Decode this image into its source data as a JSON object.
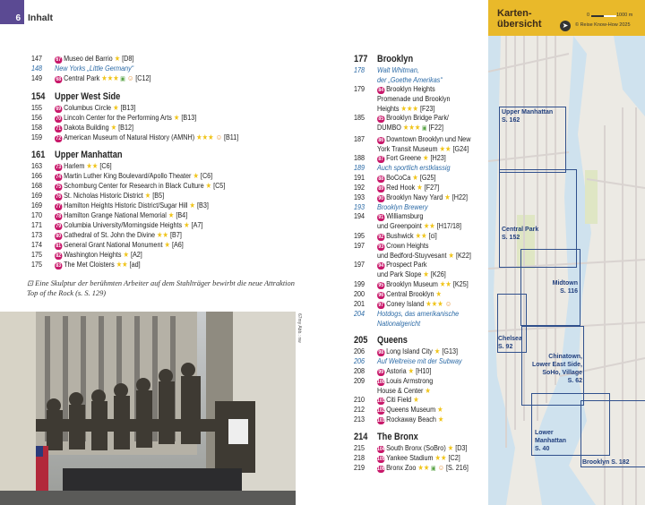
{
  "header": {
    "page_number": "6",
    "running_title": "Inhalt"
  },
  "left_sections": [
    {
      "heading": null,
      "entries": [
        {
          "page": "147",
          "badge": "67",
          "name": "Museo del Barrio",
          "stars": 1,
          "icons": [],
          "ref": "[D8]"
        },
        {
          "page": "148",
          "italic": true,
          "name": "New Yorks „Little Germany“"
        },
        {
          "page": "149",
          "badge": "68",
          "name": "Central Park",
          "stars": 3,
          "icons": [
            "map-icon",
            "kid-icon"
          ],
          "ref": "[C12]"
        }
      ]
    },
    {
      "heading": {
        "page": "154",
        "title": "Upper West Side"
      },
      "entries": [
        {
          "page": "155",
          "badge": "69",
          "name": "Columbus Circle",
          "stars": 1,
          "icons": [],
          "ref": "[B13]"
        },
        {
          "page": "156",
          "badge": "70",
          "name": "Lincoln Center for the Performing Arts",
          "stars": 1,
          "icons": [],
          "ref": "[B13]"
        },
        {
          "page": "158",
          "badge": "71",
          "name": "Dakota Building",
          "stars": 1,
          "icons": [],
          "ref": "[B12]"
        },
        {
          "page": "159",
          "badge": "72",
          "name": "American Museum of Natural History (AMNH)",
          "stars": 3,
          "icons": [
            "kid-icon"
          ],
          "ref": "[B11]"
        }
      ]
    },
    {
      "heading": {
        "page": "161",
        "title": "Upper Manhattan"
      },
      "entries": [
        {
          "page": "163",
          "badge": "73",
          "name": "Harlem",
          "stars": 2,
          "icons": [],
          "ref": "[C6]"
        },
        {
          "page": "166",
          "badge": "74",
          "name": "Martin Luther King Boulevard/Apollo Theater",
          "stars": 1,
          "icons": [],
          "ref": "[C6]"
        },
        {
          "page": "168",
          "badge": "75",
          "name": "Schomburg Center for Research in Black Culture",
          "stars": 1,
          "icons": [],
          "ref": "[C5]"
        },
        {
          "page": "169",
          "badge": "76",
          "name": "St. Nicholas Historic District",
          "stars": 1,
          "icons": [],
          "ref": "[B5]"
        },
        {
          "page": "169",
          "badge": "77",
          "name": "Hamilton Heights Historic District/Sugar Hill",
          "stars": 1,
          "icons": [],
          "ref": "[B3]"
        },
        {
          "page": "170",
          "badge": "78",
          "name": "Hamilton Grange National Memorial",
          "stars": 1,
          "icons": [],
          "ref": "[B4]"
        },
        {
          "page": "171",
          "badge": "79",
          "name": "Columbia University/Morningside Heights",
          "stars": 1,
          "icons": [],
          "ref": "[A7]"
        },
        {
          "page": "173",
          "badge": "80",
          "name": "Cathedral of St. John the Divine",
          "stars": 2,
          "icons": [],
          "ref": "[B7]"
        },
        {
          "page": "174",
          "badge": "81",
          "name": "General Grant National Monument",
          "stars": 1,
          "icons": [],
          "ref": "[A6]"
        },
        {
          "page": "175",
          "badge": "82",
          "name": "Washington Heights",
          "stars": 1,
          "icons": [],
          "ref": "[A2]"
        },
        {
          "page": "175",
          "badge": "83",
          "name": "The Met Cloisters",
          "stars": 2,
          "icons": [],
          "ref": "[ad]"
        }
      ]
    }
  ],
  "right_sections": [
    {
      "heading": {
        "page": "177",
        "title": "Brooklyn"
      },
      "entries": [
        {
          "page": "178",
          "italic": true,
          "name": "Walt Whitman,\nder „Goethe Amerikas“"
        },
        {
          "page": "179",
          "badge": "84",
          "name": "Brooklyn Heights\nPromenade und Brooklyn\nHeights",
          "stars": 3,
          "icons": [],
          "ref": "[F23]"
        },
        {
          "page": "185",
          "badge": "85",
          "name": "Brooklyn Bridge Park/\nDUMBO",
          "stars": 3,
          "icons": [
            "map-icon"
          ],
          "ref": "[F22]"
        },
        {
          "page": "187",
          "badge": "86",
          "name": "Downtown Brooklyn und New\nYork Transit Museum",
          "stars": 2,
          "icons": [],
          "ref": "[G24]"
        },
        {
          "page": "188",
          "badge": "87",
          "name": "Fort Greene",
          "stars": 1,
          "icons": [],
          "ref": "[H23]"
        },
        {
          "page": "189",
          "italic": true,
          "name": "Auch sportlich erstklassig"
        },
        {
          "page": "191",
          "badge": "88",
          "name": "BoCoCa",
          "stars": 1,
          "icons": [],
          "ref": "[G25]"
        },
        {
          "page": "192",
          "badge": "89",
          "name": "Red Hook",
          "stars": 1,
          "icons": [],
          "ref": "[F27]"
        },
        {
          "page": "193",
          "badge": "90",
          "name": "Brooklyn Navy Yard",
          "stars": 1,
          "icons": [],
          "ref": "[H22]"
        },
        {
          "page": "193",
          "italic": true,
          "name": "Brooklyn Brewery"
        },
        {
          "page": "194",
          "badge": "91",
          "name": "Williamsburg\nund Greenpoint",
          "stars": 2,
          "icons": [],
          "ref": "[H17/18]"
        },
        {
          "page": "195",
          "badge": "92",
          "name": "Bushwick",
          "stars": 2,
          "icons": [],
          "ref": "[ci]"
        },
        {
          "page": "197",
          "badge": "93",
          "name": "Crown Heights\nund Bedford-Stuyvesant",
          "stars": 1,
          "icons": [],
          "ref": "[K22]"
        },
        {
          "page": "197",
          "badge": "94",
          "name": "Prospect Park\nund Park Slope",
          "stars": 1,
          "icons": [],
          "ref": "[K26]"
        },
        {
          "page": "199",
          "badge": "95",
          "name": "Brooklyn Museum",
          "stars": 2,
          "icons": [],
          "ref": "[K25]"
        },
        {
          "page": "200",
          "badge": "96",
          "name": "Central Brooklyn",
          "stars": 1,
          "icons": [],
          "ref": ""
        },
        {
          "page": "201",
          "badge": "97",
          "name": "Coney Island",
          "stars": 3,
          "icons": [
            "kid-icon"
          ],
          "ref": ""
        },
        {
          "page": "204",
          "italic": true,
          "name": "Hotdogs, das amerikanische\nNationalgericht"
        }
      ]
    },
    {
      "heading": {
        "page": "205",
        "title": "Queens"
      },
      "entries": [
        {
          "page": "206",
          "badge": "98",
          "name": "Long Island City",
          "stars": 1,
          "icons": [],
          "ref": "[G13]"
        },
        {
          "page": "206",
          "italic": true,
          "name": "Auf Weltreise mit der Subway"
        },
        {
          "page": "208",
          "badge": "99",
          "name": "Astoria",
          "stars": 1,
          "icons": [],
          "ref": "[H10]"
        },
        {
          "page": "209",
          "badge": "100",
          "name": "Louis Armstrong\nHouse & Center",
          "stars": 1,
          "icons": [],
          "ref": ""
        },
        {
          "page": "210",
          "badge": "101",
          "name": "Citi Field",
          "stars": 1,
          "icons": [],
          "ref": ""
        },
        {
          "page": "212",
          "badge": "102",
          "name": "Queens Museum",
          "stars": 1,
          "icons": [],
          "ref": ""
        },
        {
          "page": "213",
          "badge": "103",
          "name": "Rockaway Beach",
          "stars": 1,
          "icons": [],
          "ref": ""
        }
      ]
    },
    {
      "heading": {
        "page": "214",
        "title": "The Bronx"
      },
      "entries": [
        {
          "page": "215",
          "badge": "104",
          "name": "South Bronx (SoBro)",
          "stars": 1,
          "icons": [],
          "ref": "[D3]"
        },
        {
          "page": "218",
          "badge": "105",
          "name": "Yankee Stadium",
          "stars": 2,
          "icons": [],
          "ref": "[C2]"
        },
        {
          "page": "219",
          "badge": "106",
          "name": "Bronx Zoo",
          "stars": 2,
          "icons": [
            "map-icon",
            "kid-icon"
          ],
          "ref": "[S. 216]"
        }
      ]
    }
  ],
  "caption": "Eine Skulptur der berühmten Arbeiter auf dem Stahlträger bewirbt die neue Attraktion Top of the Rock (s. S. 129)",
  "photo_credit": "67my Abb.: nw",
  "map": {
    "title": "Karten-\nübersicht",
    "scale_start": "0",
    "scale_end": "1000 m",
    "copyright": "© Reise Know-How 2025",
    "frame_color": "#30508c",
    "header_color": "#e9b92a",
    "areas": [
      {
        "label": "Upper Manhattan\nS. 162"
      },
      {
        "label": "Central Park\nS. 152"
      },
      {
        "label": "Midtown\nS. 116"
      },
      {
        "label": "Chelsea\nS. 92"
      },
      {
        "label": "Chinatown,\nLower East Side,\nSoHo, Village\nS. 62"
      },
      {
        "label": "Lower\nManhattan\nS. 40"
      },
      {
        "label": "Brooklyn S. 182"
      }
    ]
  },
  "colors": {
    "badge": "#c8186a",
    "star": "#f0c419",
    "italic_link": "#2b6aa6",
    "page_tab": "#5b4a93"
  }
}
